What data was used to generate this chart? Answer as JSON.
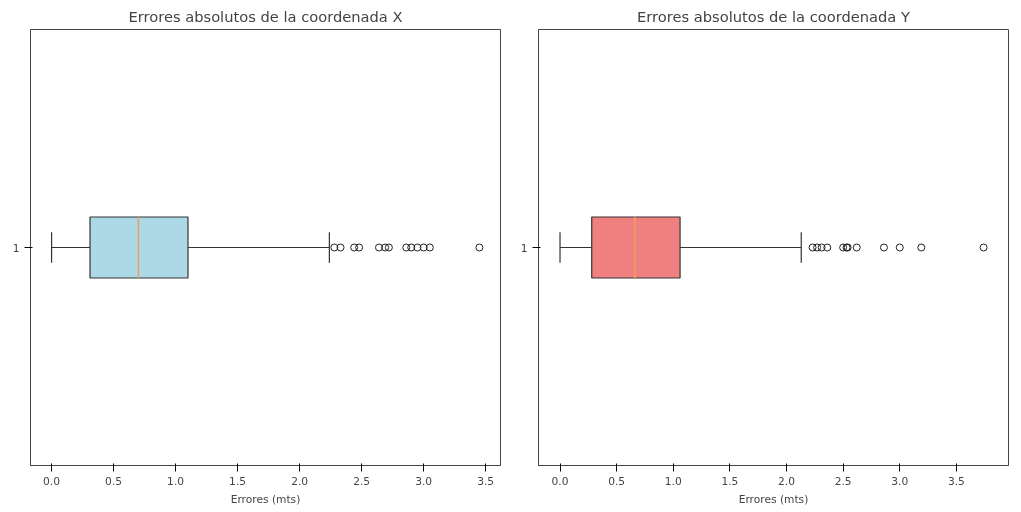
{
  "chart_data": [
    {
      "type": "box",
      "title": "Errores absolutos de la coordenada X",
      "xlabel": "Errores (mts)",
      "orientation": "horizontal",
      "categories": [
        "1"
      ],
      "grid": false,
      "xlim": [
        -0.17,
        3.62
      ],
      "xticks": [
        {
          "value": 0,
          "label": "0.0"
        },
        {
          "value": 0.5,
          "label": "0.5"
        },
        {
          "value": 1,
          "label": "1.0"
        },
        {
          "value": 1.5,
          "label": "1.5"
        },
        {
          "value": 2,
          "label": "2.0"
        },
        {
          "value": 2.5,
          "label": "2.5"
        },
        {
          "value": 3,
          "label": "3.0"
        },
        {
          "value": 3.5,
          "label": "3.5"
        }
      ],
      "series": [
        {
          "color": "#add8e6",
          "boxes": [
            {
              "low": 0.0,
              "q1": 0.31,
              "median": 0.7,
              "q3": 1.1,
              "high": 2.24,
              "outliers": [
                2.28,
                2.33,
                2.44,
                2.48,
                2.64,
                2.69,
                2.72,
                2.86,
                2.9,
                2.95,
                3.0,
                3.05,
                3.45
              ]
            }
          ]
        }
      ]
    },
    {
      "type": "box",
      "title": "Errores absolutos de la coordenada Y",
      "xlabel": "Errores (mts)",
      "orientation": "horizontal",
      "categories": [
        "1"
      ],
      "grid": false,
      "xlim": [
        -0.19,
        3.96
      ],
      "xticks": [
        {
          "value": 0,
          "label": "0.0"
        },
        {
          "value": 0.5,
          "label": "0.5"
        },
        {
          "value": 1,
          "label": "1.0"
        },
        {
          "value": 1.5,
          "label": "1.5"
        },
        {
          "value": 2,
          "label": "2.0"
        },
        {
          "value": 2.5,
          "label": "2.5"
        },
        {
          "value": 3,
          "label": "3.0"
        },
        {
          "value": 3.5,
          "label": "3.5"
        }
      ],
      "series": [
        {
          "color": "#f08080",
          "boxes": [
            {
              "low": 0.0,
              "q1": 0.28,
              "median": 0.66,
              "q3": 1.06,
              "high": 2.13,
              "outliers": [
                2.23,
                2.27,
                2.31,
                2.36,
                2.5,
                2.53,
                2.54,
                2.62,
                2.86,
                3.0,
                3.19,
                3.74
              ]
            }
          ]
        }
      ]
    }
  ]
}
